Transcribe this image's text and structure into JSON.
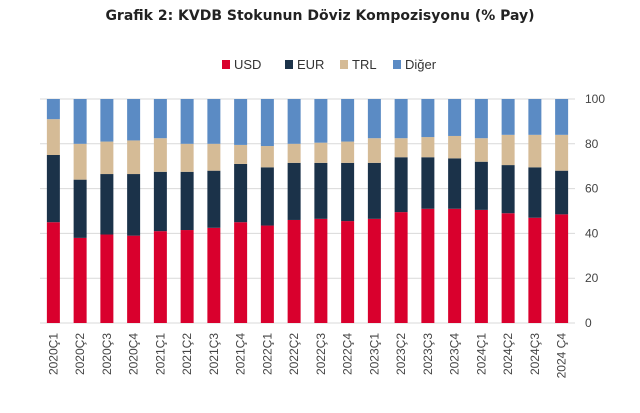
{
  "chart_data": {
    "type": "bar",
    "stacked": true,
    "title": "Grafik 2: KVDB Stokunun Döviz Kompozisyonu (% Pay)",
    "xlabel": "",
    "ylabel": "",
    "ylim": [
      0,
      100
    ],
    "yticks": [
      0,
      20,
      40,
      60,
      80,
      100
    ],
    "y_axis_position": "right",
    "legend_position": "top-center",
    "grid": true,
    "categories": [
      "2020Ç1",
      "2020Ç2",
      "2020Ç3",
      "2020Ç4",
      "2021Ç1",
      "2021Ç2",
      "2021Ç3",
      "2021Ç4",
      "2022Ç1",
      "2022Ç2",
      "2022Ç3",
      "2022Ç4",
      "2023Ç1",
      "2023Ç2",
      "2023Ç3",
      "2023Ç4",
      "2024Ç1",
      "2024Ç2",
      "2024Ç3",
      "2024 Ç4"
    ],
    "series": [
      {
        "name": "USD",
        "color": "#d9002d",
        "values": [
          45,
          38,
          39.5,
          39,
          41,
          41.5,
          42.5,
          45,
          43.5,
          46,
          46.5,
          45.5,
          46.5,
          49.5,
          51,
          51,
          50.5,
          49,
          47,
          48.5
        ]
      },
      {
        "name": "EUR",
        "color": "#1b3249",
        "values": [
          30,
          26,
          27,
          27.5,
          26.5,
          26,
          25.5,
          26,
          26,
          25.5,
          25,
          26,
          25,
          24.5,
          23,
          22.5,
          21.5,
          21.5,
          22.5,
          19.5
        ]
      },
      {
        "name": "TRL",
        "color": "#d5bb96",
        "values": [
          16,
          16,
          14.5,
          15,
          15,
          12.5,
          12,
          8.5,
          9.5,
          8.5,
          9,
          9.5,
          11,
          8.5,
          9,
          10,
          10.5,
          13.5,
          14.5,
          16
        ]
      },
      {
        "name": "Diğer",
        "color": "#5b8bc4",
        "values": [
          9,
          20,
          19,
          18.5,
          17.5,
          20,
          20,
          20.5,
          21,
          20,
          19.5,
          19,
          17.5,
          17.5,
          17,
          16.5,
          17.5,
          16,
          16,
          16
        ]
      }
    ]
  }
}
